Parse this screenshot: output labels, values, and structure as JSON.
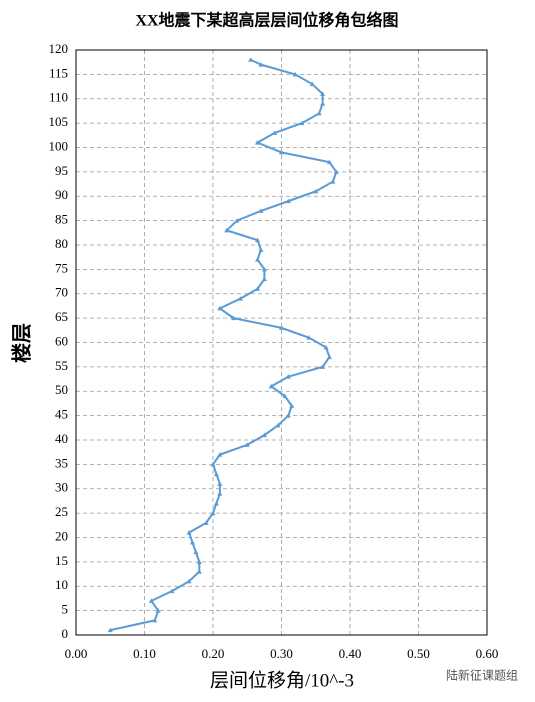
{
  "chart_data": {
    "type": "line",
    "title": "XX地震下某超高层层间位移角包络图",
    "x_label": "层间位移角/10^-3",
    "y_label": "楼层",
    "watermark": "陆新征课题组",
    "y": [
      1,
      3,
      5,
      7,
      9,
      11,
      13,
      15,
      17,
      19,
      21,
      23,
      25,
      27,
      29,
      31,
      33,
      35,
      37,
      39,
      41,
      43,
      45,
      47,
      49,
      51,
      53,
      55,
      57,
      59,
      61,
      63,
      65,
      67,
      69,
      71,
      73,
      75,
      77,
      79,
      81,
      83,
      85,
      87,
      89,
      91,
      93,
      95,
      97,
      99,
      101,
      103,
      105,
      107,
      109,
      111,
      113,
      115,
      117,
      118
    ],
    "series": [
      {
        "color": "#5b9bd5",
        "values": [
          0.05,
          0.115,
          0.12,
          0.11,
          0.14,
          0.165,
          0.18,
          0.18,
          0.175,
          0.17,
          0.165,
          0.19,
          0.2,
          0.205,
          0.21,
          0.21,
          0.205,
          0.2,
          0.21,
          0.25,
          0.275,
          0.295,
          0.31,
          0.315,
          0.305,
          0.285,
          0.31,
          0.36,
          0.37,
          0.365,
          0.34,
          0.3,
          0.23,
          0.21,
          0.24,
          0.265,
          0.275,
          0.275,
          0.265,
          0.27,
          0.265,
          0.22,
          0.235,
          0.27,
          0.31,
          0.35,
          0.375,
          0.38,
          0.37,
          0.3,
          0.265,
          0.29,
          0.33,
          0.355,
          0.36,
          0.36,
          0.345,
          0.32,
          0.27,
          0.255
        ]
      }
    ],
    "xlim": [
      0,
      0.6
    ],
    "xticks": [
      {
        "value": 0,
        "label": "0.00"
      },
      {
        "value": 0.1,
        "label": "0.10"
      },
      {
        "value": 0.2,
        "label": "0.20"
      },
      {
        "value": 0.3,
        "label": "0.30"
      },
      {
        "value": 0.4,
        "label": "0.40"
      },
      {
        "value": 0.5,
        "label": "0.50"
      },
      {
        "value": 0.6,
        "label": "0.60"
      }
    ],
    "ylim": [
      0,
      120
    ],
    "yticks": [
      0,
      5,
      10,
      15,
      20,
      25,
      30,
      35,
      40,
      45,
      50,
      55,
      60,
      65,
      70,
      75,
      80,
      85,
      90,
      95,
      100,
      105,
      110,
      115,
      120
    ],
    "grid": true
  }
}
